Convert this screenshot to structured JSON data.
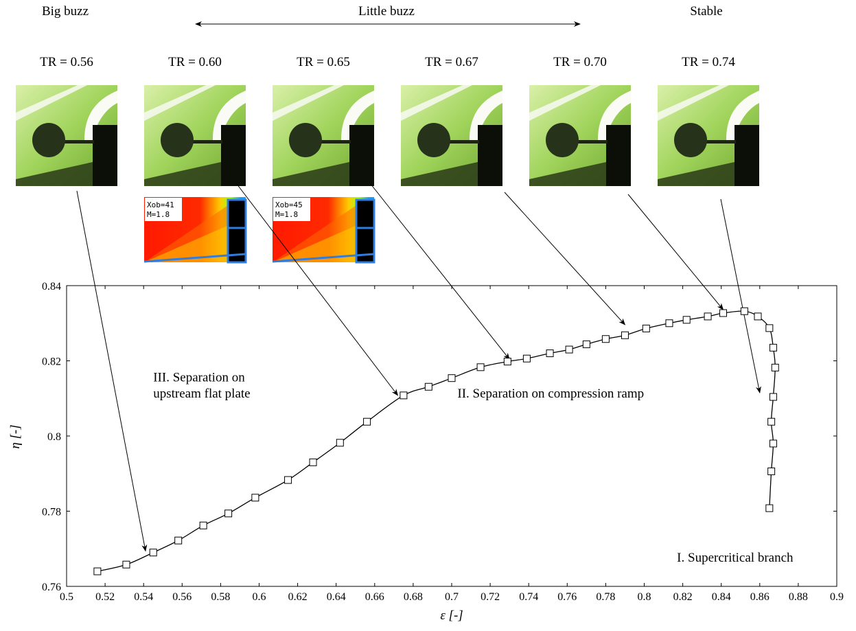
{
  "regime_labels": [
    {
      "label": "Big buzz"
    },
    {
      "label": "Little buzz"
    },
    {
      "label": "Stable"
    }
  ],
  "snapshots": [
    {
      "tr": "TR = 0.56",
      "cfd": null
    },
    {
      "tr": "TR = 0.60",
      "cfd": {
        "xob": "Xob=41",
        "mach": "M=1.8"
      }
    },
    {
      "tr": "TR = 0.65",
      "cfd": {
        "xob": "Xob=45",
        "mach": "M=1.8"
      }
    },
    {
      "tr": "TR = 0.67",
      "cfd": null
    },
    {
      "tr": "TR = 0.70",
      "cfd": null
    },
    {
      "tr": "TR = 0.74",
      "cfd": null
    }
  ],
  "chart_data": {
    "type": "line",
    "xlabel": "ε [-]",
    "ylabel": "η [-]",
    "xlim": [
      0.5,
      0.9
    ],
    "ylim": [
      0.76,
      0.84
    ],
    "xticks": [
      0.5,
      0.52,
      0.54,
      0.56,
      0.58,
      0.6,
      0.62,
      0.64,
      0.66,
      0.68,
      0.7,
      0.72,
      0.74,
      0.76,
      0.78,
      0.8,
      0.82,
      0.84,
      0.86,
      0.88,
      0.9
    ],
    "yticks": [
      0.76,
      0.78,
      0.8,
      0.82,
      0.84
    ],
    "series": [
      {
        "marker": "square",
        "points": [
          [
            0.516,
            0.764
          ],
          [
            0.531,
            0.7658
          ],
          [
            0.545,
            0.769
          ],
          [
            0.558,
            0.7722
          ],
          [
            0.571,
            0.7762
          ],
          [
            0.584,
            0.7794
          ],
          [
            0.598,
            0.7836
          ],
          [
            0.615,
            0.7883
          ],
          [
            0.628,
            0.793
          ],
          [
            0.642,
            0.7982
          ],
          [
            0.656,
            0.8038
          ],
          [
            0.675,
            0.8108
          ],
          [
            0.688,
            0.8131
          ],
          [
            0.7,
            0.8154
          ],
          [
            0.715,
            0.8183
          ],
          [
            0.729,
            0.8198
          ],
          [
            0.739,
            0.8206
          ],
          [
            0.751,
            0.822
          ],
          [
            0.761,
            0.823
          ],
          [
            0.77,
            0.8244
          ],
          [
            0.78,
            0.8258
          ],
          [
            0.79,
            0.8268
          ],
          [
            0.801,
            0.8286
          ],
          [
            0.813,
            0.83
          ],
          [
            0.822,
            0.8309
          ],
          [
            0.833,
            0.8318
          ],
          [
            0.841,
            0.8327
          ],
          [
            0.852,
            0.8332
          ],
          [
            0.859,
            0.8318
          ],
          [
            0.865,
            0.8287
          ],
          [
            0.867,
            0.8235
          ],
          [
            0.868,
            0.8182
          ],
          [
            0.867,
            0.8104
          ],
          [
            0.866,
            0.8038
          ],
          [
            0.867,
            0.798
          ],
          [
            0.866,
            0.7906
          ],
          [
            0.865,
            0.7808
          ]
        ]
      }
    ],
    "annotations": [
      {
        "text": "III. Separation on",
        "x": 0.545,
        "y": 0.8145
      },
      {
        "text": "upstream flat plate",
        "x": 0.545,
        "y": 0.8102
      },
      {
        "text": "II. Separation on compression ramp",
        "x": 0.703,
        "y": 0.8102
      },
      {
        "text": "I. Supercritical branch",
        "x": 0.817,
        "y": 0.7666
      }
    ],
    "arrow_targets": [
      {
        "snapshot": 0,
        "x": 0.541,
        "y": 0.7694
      },
      {
        "snapshot": 1,
        "x": 0.672,
        "y": 0.8108
      },
      {
        "snapshot": 2,
        "x": 0.73,
        "y": 0.8204
      },
      {
        "snapshot": 3,
        "x": 0.79,
        "y": 0.8296
      },
      {
        "snapshot": 4,
        "x": 0.841,
        "y": 0.8336
      },
      {
        "snapshot": 5,
        "x": 0.86,
        "y": 0.8115
      }
    ]
  }
}
